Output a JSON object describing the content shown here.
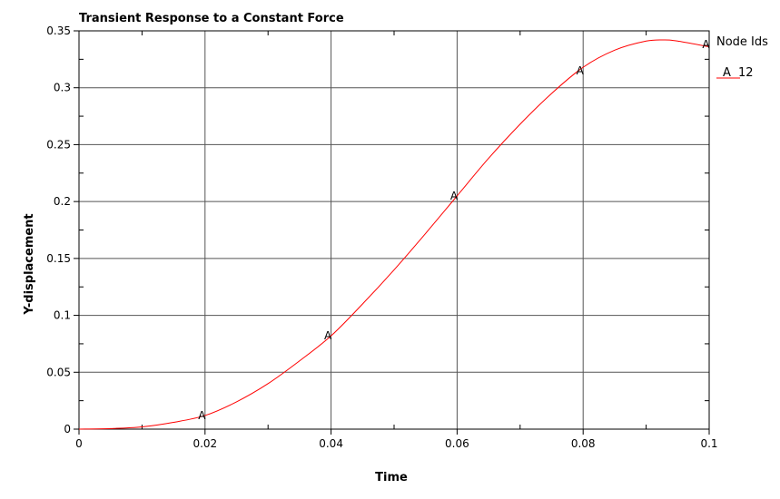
{
  "chart_data": {
    "type": "line",
    "title": "Transient Response to a Constant Force",
    "xlabel": "Time",
    "ylabel": "Y-displacement",
    "xlim": [
      0,
      0.1
    ],
    "ylim": [
      0,
      0.35
    ],
    "x_ticks": [
      0,
      0.02,
      0.04,
      0.06,
      0.08,
      0.1
    ],
    "x_tick_labels": [
      "0",
      "0.02",
      "0.04",
      "0.06",
      "0.08",
      "0.1"
    ],
    "y_ticks": [
      0,
      0.05,
      0.1,
      0.15,
      0.2,
      0.25,
      0.3,
      0.35
    ],
    "y_tick_labels": [
      "0",
      "0.05",
      "0.1",
      "0.15",
      "0.2",
      "0.25",
      "0.3",
      "0.35"
    ],
    "grid": true,
    "legend": {
      "placement": "right",
      "title": "Node Ids",
      "entries": [
        {
          "symbol": "A",
          "label": "12"
        }
      ]
    },
    "series": [
      {
        "name": "12",
        "symbol": "A",
        "color": "#ff0000",
        "x": [
          0,
          0.005,
          0.01,
          0.015,
          0.02,
          0.025,
          0.03,
          0.035,
          0.04,
          0.045,
          0.05,
          0.055,
          0.06,
          0.065,
          0.07,
          0.075,
          0.08,
          0.085,
          0.09,
          0.093,
          0.095,
          0.1
        ],
        "y": [
          0,
          0.0005,
          0.002,
          0.006,
          0.012,
          0.024,
          0.04,
          0.06,
          0.082,
          0.11,
          0.14,
          0.172,
          0.205,
          0.238,
          0.268,
          0.295,
          0.318,
          0.333,
          0.341,
          0.342,
          0.341,
          0.336
        ],
        "marker_x": [
          0.0195,
          0.0395,
          0.0595,
          0.0795,
          0.0995
        ],
        "marker_y": [
          0.012,
          0.082,
          0.205,
          0.315,
          0.338
        ]
      }
    ]
  }
}
